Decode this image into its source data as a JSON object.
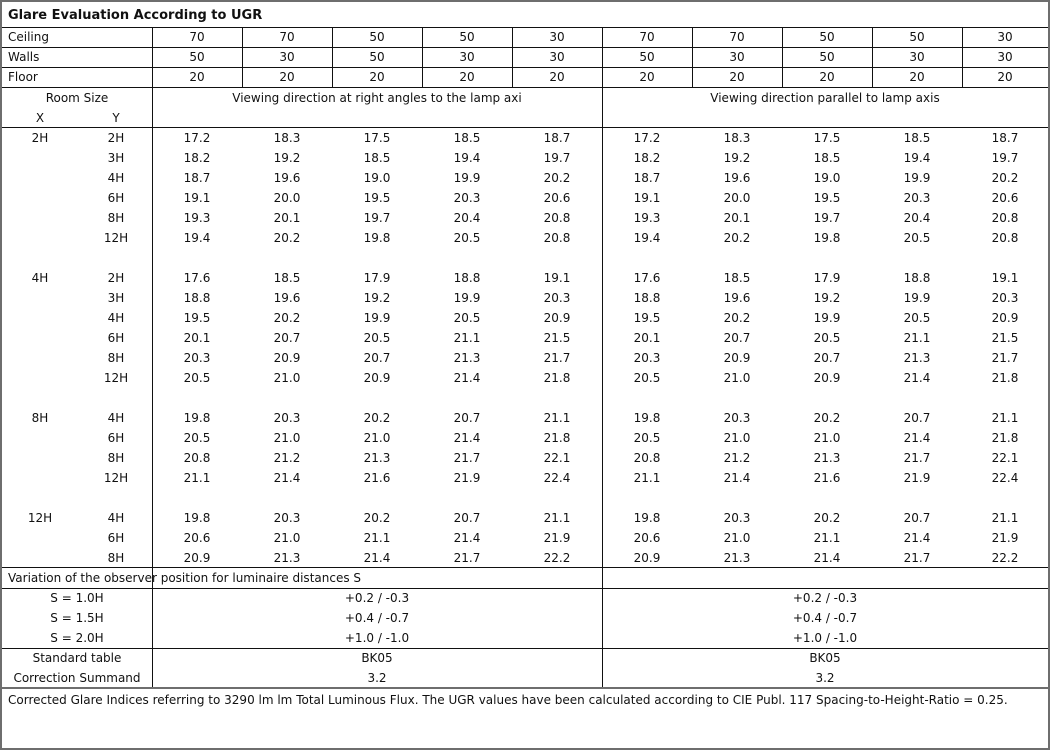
{
  "title": "Glare Evaluation According to UGR",
  "reflectances": [
    {
      "label": "Ceiling",
      "values": [
        "70",
        "70",
        "50",
        "50",
        "30",
        "70",
        "70",
        "50",
        "50",
        "30"
      ]
    },
    {
      "label": "Walls",
      "values": [
        "50",
        "30",
        "50",
        "30",
        "30",
        "50",
        "30",
        "50",
        "30",
        "30"
      ]
    },
    {
      "label": "Floor",
      "values": [
        "20",
        "20",
        "20",
        "20",
        "20",
        "20",
        "20",
        "20",
        "20",
        "20"
      ]
    }
  ],
  "room_size": {
    "label": "Room Size",
    "x": "X",
    "y": "Y"
  },
  "directions": [
    "Viewing direction at right angles to the lamp axi",
    "Viewing direction parallel to lamp axis"
  ],
  "groups": [
    {
      "x": "2H",
      "rows": [
        {
          "y": "2H",
          "values": [
            "17.2",
            "18.3",
            "17.5",
            "18.5",
            "18.7",
            "17.2",
            "18.3",
            "17.5",
            "18.5",
            "18.7"
          ]
        },
        {
          "y": "3H",
          "values": [
            "18.2",
            "19.2",
            "18.5",
            "19.4",
            "19.7",
            "18.2",
            "19.2",
            "18.5",
            "19.4",
            "19.7"
          ]
        },
        {
          "y": "4H",
          "values": [
            "18.7",
            "19.6",
            "19.0",
            "19.9",
            "20.2",
            "18.7",
            "19.6",
            "19.0",
            "19.9",
            "20.2"
          ]
        },
        {
          "y": "6H",
          "values": [
            "19.1",
            "20.0",
            "19.5",
            "20.3",
            "20.6",
            "19.1",
            "20.0",
            "19.5",
            "20.3",
            "20.6"
          ]
        },
        {
          "y": "8H",
          "values": [
            "19.3",
            "20.1",
            "19.7",
            "20.4",
            "20.8",
            "19.3",
            "20.1",
            "19.7",
            "20.4",
            "20.8"
          ]
        },
        {
          "y": "12H",
          "values": [
            "19.4",
            "20.2",
            "19.8",
            "20.5",
            "20.8",
            "19.4",
            "20.2",
            "19.8",
            "20.5",
            "20.8"
          ]
        }
      ]
    },
    {
      "x": "4H",
      "rows": [
        {
          "y": "2H",
          "values": [
            "17.6",
            "18.5",
            "17.9",
            "18.8",
            "19.1",
            "17.6",
            "18.5",
            "17.9",
            "18.8",
            "19.1"
          ]
        },
        {
          "y": "3H",
          "values": [
            "18.8",
            "19.6",
            "19.2",
            "19.9",
            "20.3",
            "18.8",
            "19.6",
            "19.2",
            "19.9",
            "20.3"
          ]
        },
        {
          "y": "4H",
          "values": [
            "19.5",
            "20.2",
            "19.9",
            "20.5",
            "20.9",
            "19.5",
            "20.2",
            "19.9",
            "20.5",
            "20.9"
          ]
        },
        {
          "y": "6H",
          "values": [
            "20.1",
            "20.7",
            "20.5",
            "21.1",
            "21.5",
            "20.1",
            "20.7",
            "20.5",
            "21.1",
            "21.5"
          ]
        },
        {
          "y": "8H",
          "values": [
            "20.3",
            "20.9",
            "20.7",
            "21.3",
            "21.7",
            "20.3",
            "20.9",
            "20.7",
            "21.3",
            "21.7"
          ]
        },
        {
          "y": "12H",
          "values": [
            "20.5",
            "21.0",
            "20.9",
            "21.4",
            "21.8",
            "20.5",
            "21.0",
            "20.9",
            "21.4",
            "21.8"
          ]
        }
      ]
    },
    {
      "x": "8H",
      "rows": [
        {
          "y": "4H",
          "values": [
            "19.8",
            "20.3",
            "20.2",
            "20.7",
            "21.1",
            "19.8",
            "20.3",
            "20.2",
            "20.7",
            "21.1"
          ]
        },
        {
          "y": "6H",
          "values": [
            "20.5",
            "21.0",
            "21.0",
            "21.4",
            "21.8",
            "20.5",
            "21.0",
            "21.0",
            "21.4",
            "21.8"
          ]
        },
        {
          "y": "8H",
          "values": [
            "20.8",
            "21.2",
            "21.3",
            "21.7",
            "22.1",
            "20.8",
            "21.2",
            "21.3",
            "21.7",
            "22.1"
          ]
        },
        {
          "y": "12H",
          "values": [
            "21.1",
            "21.4",
            "21.6",
            "21.9",
            "22.4",
            "21.1",
            "21.4",
            "21.6",
            "21.9",
            "22.4"
          ]
        }
      ]
    },
    {
      "x": "12H",
      "rows": [
        {
          "y": "4H",
          "values": [
            "19.8",
            "20.3",
            "20.2",
            "20.7",
            "21.1",
            "19.8",
            "20.3",
            "20.2",
            "20.7",
            "21.1"
          ]
        },
        {
          "y": "6H",
          "values": [
            "20.6",
            "21.0",
            "21.1",
            "21.4",
            "21.9",
            "20.6",
            "21.0",
            "21.1",
            "21.4",
            "21.9"
          ]
        },
        {
          "y": "8H",
          "values": [
            "20.9",
            "21.3",
            "21.4",
            "21.7",
            "22.2",
            "20.9",
            "21.3",
            "21.4",
            "21.7",
            "22.2"
          ]
        }
      ]
    }
  ],
  "variation": {
    "label": "Variation of the observer position for luminaire distances S",
    "rows": [
      {
        "label": "S = 1.0H",
        "left": "+0.2 / -0.3",
        "right": "+0.2 / -0.3"
      },
      {
        "label": "S = 1.5H",
        "left": "+0.4 / -0.7",
        "right": "+0.4 / -0.7"
      },
      {
        "label": "S = 2.0H",
        "left": "+1.0 / -1.0",
        "right": "+1.0 / -1.0"
      }
    ]
  },
  "standard_table": {
    "label": "Standard table",
    "left": "BK05",
    "right": "BK05"
  },
  "correction": {
    "label": "Correction Summand",
    "left": "3.2",
    "right": "3.2"
  },
  "footer": "Corrected Glare Indices referring to 3290 lm lm Total Luminous Flux. The UGR values have been calculated according to CIE Publ. 117     Spacing-to-Height-Ratio = 0.25."
}
